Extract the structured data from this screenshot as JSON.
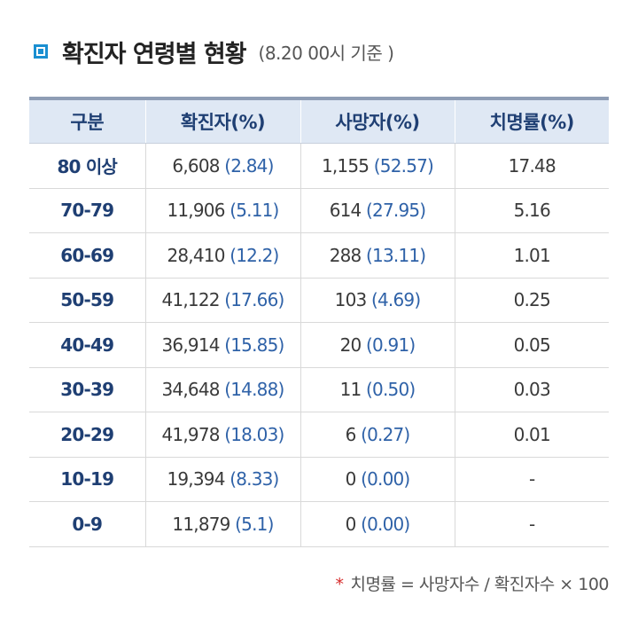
{
  "title": {
    "text": "확진자 연령별 현황",
    "note": "(8.20 00시 기준 )"
  },
  "table": {
    "headers": [
      "구분",
      "확진자(%)",
      "사망자(%)",
      "치명률(%)"
    ],
    "rows": [
      {
        "age": "80 이상",
        "cases": "6,608",
        "cases_pct": "(2.84)",
        "deaths": "1,155",
        "deaths_pct": "(52.57)",
        "fatality": "17.48"
      },
      {
        "age": "70-79",
        "cases": "11,906",
        "cases_pct": "(5.11)",
        "deaths": "614",
        "deaths_pct": "(27.95)",
        "fatality": "5.16"
      },
      {
        "age": "60-69",
        "cases": "28,410",
        "cases_pct": "(12.2)",
        "deaths": "288",
        "deaths_pct": "(13.11)",
        "fatality": "1.01"
      },
      {
        "age": "50-59",
        "cases": "41,122",
        "cases_pct": "(17.66)",
        "deaths": "103",
        "deaths_pct": "(4.69)",
        "fatality": "0.25"
      },
      {
        "age": "40-49",
        "cases": "36,914",
        "cases_pct": "(15.85)",
        "deaths": "20",
        "deaths_pct": "(0.91)",
        "fatality": "0.05"
      },
      {
        "age": "30-39",
        "cases": "34,648",
        "cases_pct": "(14.88)",
        "deaths": "11",
        "deaths_pct": "(0.50)",
        "fatality": "0.03"
      },
      {
        "age": "20-29",
        "cases": "41,978",
        "cases_pct": "(18.03)",
        "deaths": "6",
        "deaths_pct": "(0.27)",
        "fatality": "0.01"
      },
      {
        "age": "10-19",
        "cases": "19,394",
        "cases_pct": "(8.33)",
        "deaths": "0",
        "deaths_pct": "(0.00)",
        "fatality": "-"
      },
      {
        "age": "0-9",
        "cases": "11,879",
        "cases_pct": "(5.1)",
        "deaths": "0",
        "deaths_pct": "(0.00)",
        "fatality": "-"
      }
    ]
  },
  "footnote": {
    "star": "*",
    "text": "치명률 = 사망자수 / 확진자수 × 100"
  },
  "colors": {
    "accent_blue": "#1a8fd1",
    "header_bg": "#dfe8f4",
    "header_text": "#1f3f73",
    "value_blue": "#2f62a8",
    "footnote_star": "#d62b2b"
  },
  "icons": {
    "title_marker": "square-bullet-icon"
  }
}
